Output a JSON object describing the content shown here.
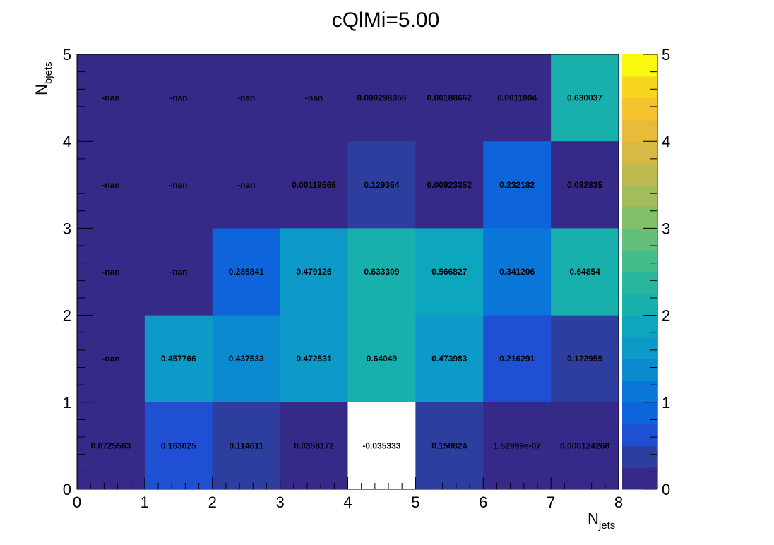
{
  "chart_data": {
    "type": "heatmap",
    "title": "cQlMi=5.00",
    "xlabel": "N",
    "xlabel_sub": "jets",
    "ylabel": "N",
    "ylabel_sub": "bjets",
    "xlim": [
      0,
      8
    ],
    "ylim": [
      0,
      5
    ],
    "x_ticks": [
      "0",
      "1",
      "2",
      "3",
      "4",
      "5",
      "6",
      "7",
      "8"
    ],
    "y_ticks": [
      "0",
      "1",
      "2",
      "3",
      "4",
      "5"
    ],
    "z_range": [
      0,
      5
    ],
    "z_ticks": [
      "0",
      "1",
      "2",
      "3",
      "4",
      "5"
    ],
    "palette": [
      "#352a87",
      "#2d3e9e",
      "#1f4fd3",
      "#0e64db",
      "#0a76d8",
      "#0b8ad0",
      "#0d9ac8",
      "#0ca6be",
      "#17b0ac",
      "#27b69c",
      "#44bc8c",
      "#63bf7a",
      "#84bf69",
      "#a4bd5b",
      "#c0b950",
      "#d7ba45",
      "#e8bc3a",
      "#f5c32c",
      "#f8d61f",
      "#f9f80e"
    ],
    "empty_color": "#ffffff",
    "rows": [
      {
        "y": 4.5,
        "labels": [
          "-nan",
          "-nan",
          "-nan",
          "-nan",
          "0.000298355",
          "0.00188662",
          "0.0011004",
          "0.630037"
        ],
        "values": [
          null,
          null,
          null,
          null,
          0.000298355,
          0.00188662,
          0.0011004,
          0.630037
        ]
      },
      {
        "y": 3.5,
        "labels": [
          "-nan",
          "-nan",
          "-nan",
          "0.00119566",
          "0.129364",
          "0.00923352",
          "0.232182",
          "0.032835"
        ],
        "values": [
          null,
          null,
          null,
          0.00119566,
          0.129364,
          0.00923352,
          0.232182,
          0.032835
        ]
      },
      {
        "y": 2.5,
        "labels": [
          "-nan",
          "-nan",
          "0.285841",
          "0.479126",
          "0.633309",
          "0.566827",
          "0.341206",
          "0.64854"
        ],
        "values": [
          null,
          null,
          0.285841,
          0.479126,
          0.633309,
          0.566827,
          0.341206,
          0.64854
        ]
      },
      {
        "y": 1.5,
        "labels": [
          "-nan",
          "0.457766",
          "0.437533",
          "0.472531",
          "0.64049",
          "0.473983",
          "0.216291",
          "0.122959"
        ],
        "values": [
          null,
          0.457766,
          0.437533,
          0.472531,
          0.64049,
          0.473983,
          0.216291,
          0.122959
        ]
      },
      {
        "y": 0.5,
        "labels": [
          "0.0725563",
          "0.163025",
          "0.114611",
          "0.0358172",
          "-0.035333",
          "0.150824",
          "1.52999e-07",
          "0.000124268"
        ],
        "values": [
          0.0725563,
          0.163025,
          0.114611,
          0.0358172,
          -0.035333,
          0.150824,
          1.52999e-07,
          0.000124268
        ]
      }
    ],
    "x_centers": [
      0.5,
      1.5,
      2.5,
      3.5,
      4.5,
      5.5,
      6.5,
      7.5
    ],
    "grid": false,
    "legend": "colorbar-right"
  }
}
